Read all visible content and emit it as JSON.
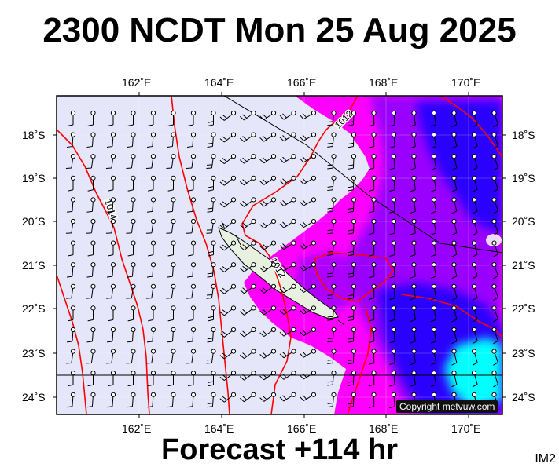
{
  "title": "2300 NCDT Mon 25 Aug 2025",
  "footer": "Forecast +114 hr",
  "product_code": "IM2",
  "copyright": "Copyright metvuw.com",
  "map": {
    "lon_labels": [
      "162˚E",
      "164˚E",
      "166˚E",
      "168˚E",
      "170˚E"
    ],
    "lat_labels": [
      "18˚S",
      "19˚S",
      "20˚S",
      "21˚S",
      "22˚S",
      "23˚S",
      "24˚S"
    ],
    "isobar_labels": [
      "1012",
      "1012",
      "1014"
    ],
    "colors": {
      "background": "#e6e6fa",
      "rain_magenta": "#ff00ff",
      "rain_purple": "#9a00ff",
      "rain_blue": "#2a00ff",
      "rain_cyan": "#00ffff",
      "land": "#e8f0e0",
      "isobar": "#ff0000"
    }
  }
}
